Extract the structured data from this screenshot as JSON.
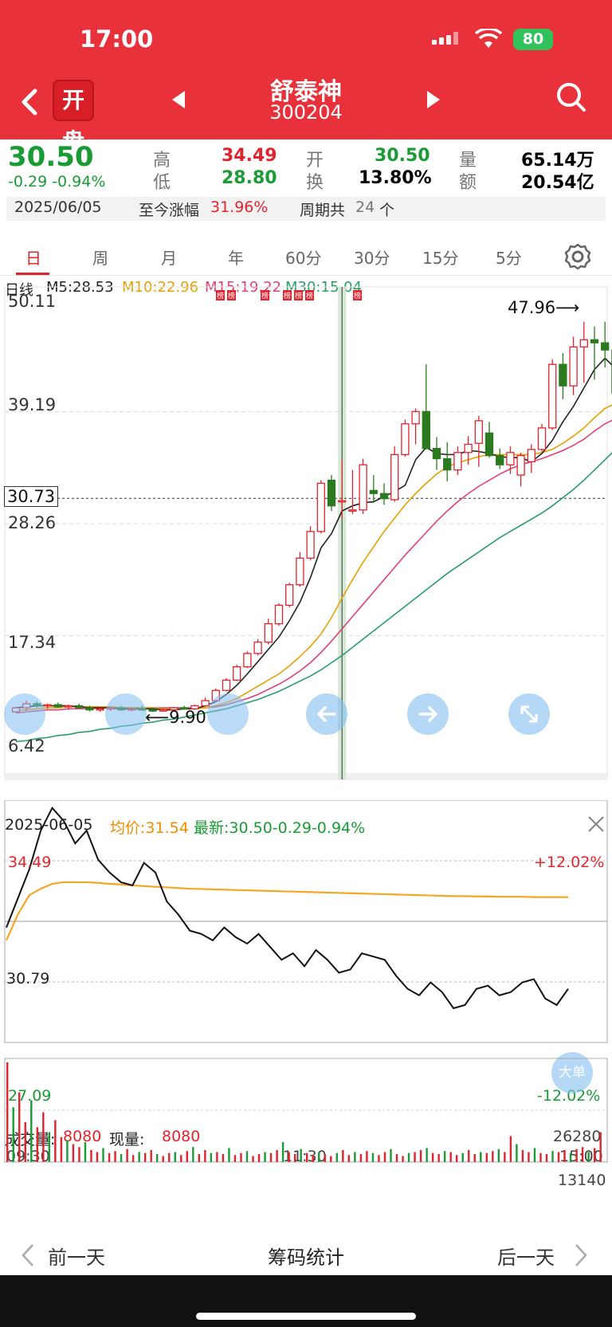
{
  "status_bar": {
    "time": "17:00",
    "battery": "80"
  },
  "header": {
    "badge": "开盘",
    "stock_name": "舒泰神",
    "stock_code": "300204"
  },
  "quote": {
    "price": "30.50",
    "change": "-0.29 -0.94%",
    "high_label": "高",
    "high": "34.49",
    "low_label": "低",
    "low": "28.80",
    "open_label": "开",
    "open": "30.50",
    "turnover_label": "换",
    "turnover": "13.80%",
    "volume_label": "量",
    "volume": "65.14万",
    "amount_label": "额",
    "amount": "20.54亿",
    "date": "2025/06/05",
    "gain_label": "至今涨幅",
    "gain": "31.96%",
    "period_label": "周期共",
    "period_count": "24",
    "period_unit": "个"
  },
  "tabs": [
    "日",
    "周",
    "月",
    "年",
    "60分",
    "30分",
    "15分",
    "5分"
  ],
  "kline": {
    "title": "日线",
    "ma5": "M5:28.53",
    "ma10": "M10:22.96",
    "ma15": "M15:19.22",
    "ma30": "M30:15.04",
    "yaxis": [
      "50.11",
      "39.19",
      "28.26",
      "17.34",
      "6.42"
    ],
    "crosshair_price": "30.73",
    "max_label": "47.96⟶",
    "min_label": "⟵9.90",
    "bang": "榜"
  },
  "intraday": {
    "date": "2025-06-05",
    "avg_label": "均价:31.54",
    "latest_label": "最新:30.50-0.29-0.94%",
    "y_top": "34.49",
    "y_mid": "30.79",
    "y_bottom": "27.09",
    "pct_top": "+12.02%",
    "pct_bottom": "-12.02%",
    "big_order": "大单",
    "vol_label": "成交量:",
    "vol_value": "8080",
    "cur_label": "现量:",
    "cur_value": "8080",
    "vol_max": "26280",
    "vol_mid": "13140",
    "time_start": "09:30",
    "time_mid": "11:30",
    "time_end": "15:00"
  },
  "bottom_bar": {
    "prev": "前一天",
    "center": "筹码统计",
    "next": "后一天"
  },
  "colors": {
    "header_red": "#e8313a",
    "up": "#e0242d",
    "down": "#1a9b35",
    "ma10": "#e5a100",
    "ma15": "#e0407a",
    "ma30": "#2a9d6a"
  },
  "chart_data": {
    "type": "candlestick",
    "candles": [
      [
        9.9,
        10.4,
        10.1,
        10.3
      ],
      [
        10.3,
        11.0,
        10.0,
        10.7
      ],
      [
        10.7,
        10.9,
        10.3,
        10.5
      ],
      [
        10.5,
        10.7,
        10.2,
        10.6
      ],
      [
        10.6,
        10.8,
        10.3,
        10.4
      ],
      [
        10.4,
        10.6,
        10.1,
        10.5
      ],
      [
        10.5,
        10.7,
        10.2,
        10.3
      ],
      [
        10.3,
        10.5,
        9.95,
        10.1
      ],
      [
        10.1,
        10.4,
        9.9,
        10.2
      ],
      [
        10.2,
        10.4,
        10.0,
        10.3
      ],
      [
        10.3,
        10.5,
        10.0,
        10.1
      ],
      [
        10.1,
        10.3,
        9.95,
        10.2
      ],
      [
        10.2,
        10.5,
        10.0,
        10.1
      ],
      [
        10.1,
        10.3,
        9.9,
        10.0
      ],
      [
        10.0,
        10.2,
        9.9,
        10.1
      ],
      [
        10.1,
        10.4,
        10.0,
        10.3
      ],
      [
        10.3,
        10.5,
        10.1,
        10.2
      ],
      [
        10.2,
        10.6,
        10.1,
        10.5
      ],
      [
        10.5,
        11.3,
        10.4,
        11.0
      ],
      [
        11.0,
        12.2,
        10.9,
        12.0
      ],
      [
        12.0,
        13.2,
        11.9,
        13.0
      ],
      [
        13.0,
        14.5,
        12.9,
        14.3
      ],
      [
        14.3,
        15.8,
        14.2,
        15.6
      ],
      [
        15.6,
        17.0,
        15.4,
        16.7
      ],
      [
        16.7,
        19.0,
        16.5,
        18.5
      ],
      [
        18.5,
        20.5,
        18.3,
        20.3
      ],
      [
        20.3,
        22.5,
        20.1,
        22.3
      ],
      [
        22.3,
        25.5,
        22.1,
        24.9
      ],
      [
        24.9,
        28.0,
        24.7,
        27.5
      ],
      [
        27.5,
        32.5,
        27.3,
        32.2
      ],
      [
        32.5,
        33.0,
        29.5,
        30.0
      ],
      [
        30.5,
        34.5,
        28.8,
        30.5
      ],
      [
        29.5,
        33.5,
        29.2,
        29.6
      ],
      [
        29.6,
        34.6,
        29.2,
        34.0
      ],
      [
        31.5,
        33.0,
        30.3,
        31.2
      ],
      [
        31.2,
        32.2,
        30.1,
        30.7
      ],
      [
        30.6,
        35.8,
        30.4,
        35.0
      ],
      [
        35.0,
        38.4,
        34.8,
        38.0
      ],
      [
        38.0,
        39.5,
        36.0,
        39.2
      ],
      [
        39.2,
        43.8,
        35.5,
        35.6
      ],
      [
        35.6,
        36.7,
        33.5,
        34.6
      ],
      [
        34.6,
        36.2,
        32.4,
        33.5
      ],
      [
        33.5,
        35.8,
        33.0,
        35.2
      ],
      [
        35.2,
        36.8,
        34.0,
        36.0
      ],
      [
        36.1,
        38.8,
        33.8,
        38.3
      ],
      [
        37.1,
        38.2,
        34.7,
        34.9
      ],
      [
        34.9,
        35.6,
        33.6,
        34.0
      ],
      [
        34.0,
        35.8,
        33.1,
        35.2
      ],
      [
        33.0,
        35.2,
        31.9,
        34.9
      ],
      [
        34.3,
        36.0,
        33.2,
        35.5
      ],
      [
        35.5,
        38.0,
        35.3,
        37.6
      ],
      [
        37.6,
        44.3,
        37.4,
        43.8
      ],
      [
        43.8,
        44.9,
        40.4,
        41.7
      ],
      [
        41.7,
        46.5,
        40.8,
        45.5
      ],
      [
        45.5,
        47.96,
        42.0,
        46.2
      ],
      [
        46.2,
        47.5,
        42.3,
        45.9
      ],
      [
        45.9,
        47.96,
        43.5,
        45.2
      ],
      [
        45.2,
        45.5,
        40.0,
        41.0
      ]
    ],
    "ma5": [
      10.3,
      10.4,
      10.5,
      10.5,
      10.5,
      10.5,
      10.4,
      10.3,
      10.3,
      10.3,
      10.2,
      10.2,
      10.2,
      10.2,
      10.1,
      10.1,
      10.2,
      10.2,
      10.5,
      10.9,
      11.6,
      12.5,
      13.6,
      14.8,
      16.0,
      17.2,
      18.8,
      20.6,
      23.0,
      25.9,
      27.3,
      29.5,
      30.0,
      30.3,
      30.4,
      30.9,
      31.4,
      32.0,
      34.5,
      35.7,
      35.1,
      35.0,
      35.0,
      35.4,
      35.3,
      35.1,
      34.8,
      34.7,
      34.7,
      34.3,
      35.1,
      36.4,
      38.2,
      39.7,
      41.5,
      43.3,
      44.4,
      43.4
    ],
    "ma10": [
      10.0,
      10.1,
      10.2,
      10.3,
      10.3,
      10.4,
      10.4,
      10.4,
      10.4,
      10.4,
      10.3,
      10.3,
      10.3,
      10.3,
      10.2,
      10.2,
      10.2,
      10.2,
      10.3,
      10.5,
      10.8,
      11.2,
      11.8,
      12.4,
      13.0,
      13.6,
      14.4,
      15.3,
      16.3,
      17.5,
      19.1,
      21.0,
      22.8,
      24.5,
      26.0,
      27.5,
      28.8,
      30.1,
      31.2,
      32.2,
      33.1,
      33.8,
      34.2,
      34.5,
      34.8,
      35.0,
      35.0,
      35.0,
      35.0,
      35.0,
      35.2,
      35.5,
      36.1,
      36.8,
      37.6,
      38.6,
      39.5,
      40.0
    ],
    "ma15": [
      9.8,
      9.9,
      10.0,
      10.1,
      10.1,
      10.2,
      10.2,
      10.2,
      10.3,
      10.3,
      10.3,
      10.3,
      10.3,
      10.3,
      10.3,
      10.3,
      10.3,
      10.3,
      10.3,
      10.4,
      10.6,
      10.9,
      11.2,
      11.6,
      12.1,
      12.6,
      13.2,
      13.9,
      14.7,
      15.7,
      16.8,
      18.0,
      19.2,
      20.4,
      21.6,
      22.8,
      24.0,
      25.2,
      26.3,
      27.4,
      28.5,
      29.5,
      30.4,
      31.2,
      31.9,
      32.5,
      33.1,
      33.6,
      34.0,
      34.3,
      34.6,
      35.0,
      35.4,
      35.9,
      36.5,
      37.3,
      38.0,
      38.5
    ],
    "ma30": [
      7.0,
      7.1,
      7.3,
      7.4,
      7.6,
      7.7,
      7.9,
      8.0,
      8.2,
      8.3,
      8.5,
      8.6,
      8.8,
      8.9,
      9.1,
      9.2,
      9.4,
      9.6,
      9.8,
      10.0,
      10.2,
      10.5,
      10.8,
      11.1,
      11.5,
      11.9,
      12.4,
      12.9,
      13.4,
      14.0,
      14.7,
      15.4,
      16.2,
      17.0,
      17.8,
      18.6,
      19.4,
      20.2,
      21.0,
      21.8,
      22.6,
      23.4,
      24.1,
      24.8,
      25.5,
      26.2,
      26.9,
      27.5,
      28.1,
      28.7,
      29.3,
      30.0,
      30.8,
      31.6,
      32.5,
      33.5,
      34.5,
      35.5
    ],
    "ylim": [
      6.42,
      50.11
    ],
    "high": 47.96,
    "low": 9.9
  }
}
